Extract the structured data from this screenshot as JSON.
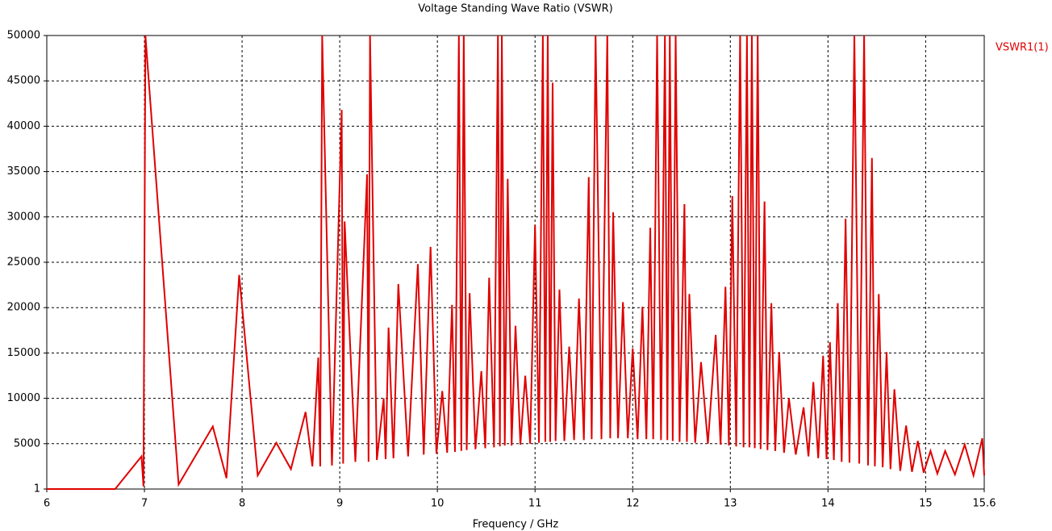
{
  "chart_data": {
    "type": "line",
    "title": "Voltage Standing Wave Ratio (VSWR)",
    "x_label": "Frequency / GHz",
    "xlim": [
      6,
      15.6
    ],
    "xticks": [
      6,
      7,
      8,
      9,
      10,
      11,
      12,
      13,
      14,
      15,
      15.6
    ],
    "ylim": [
      1,
      50000
    ],
    "yticks": [
      1,
      5000,
      10000,
      15000,
      20000,
      25000,
      30000,
      35000,
      40000,
      45000,
      50000
    ],
    "grid": true,
    "legend": "top-right",
    "x": [
      6,
      6.7,
      6.97,
      6.99,
      7.01,
      7.35,
      7.7,
      7.84,
      7.97,
      8.16,
      8.35,
      8.5,
      8.65,
      8.72,
      8.78,
      8.8,
      8.82,
      8.92,
      9.02,
      9.035,
      9.05,
      9.16,
      9.28,
      9.295,
      9.31,
      9.38,
      9.45,
      9.47,
      9.5,
      9.55,
      9.6,
      9.7,
      9.8,
      9.86,
      9.93,
      9.99,
      10.05,
      10.1,
      10.15,
      10.18,
      10.22,
      10.245,
      10.27,
      10.3,
      10.33,
      10.39,
      10.45,
      10.49,
      10.53,
      10.58,
      10.62,
      10.64,
      10.66,
      10.69,
      10.72,
      10.76,
      10.8,
      10.85,
      10.9,
      10.95,
      11.0,
      11.04,
      11.08,
      11.105,
      11.13,
      11.155,
      11.18,
      11.21,
      11.25,
      11.3,
      11.35,
      11.4,
      11.45,
      11.5,
      11.55,
      11.58,
      11.62,
      11.68,
      11.74,
      11.77,
      11.8,
      11.85,
      11.9,
      11.95,
      12.0,
      12.05,
      12.1,
      12.14,
      12.18,
      12.21,
      12.25,
      12.29,
      12.33,
      12.355,
      12.38,
      12.41,
      12.44,
      12.48,
      12.53,
      12.555,
      12.58,
      12.64,
      12.7,
      12.77,
      12.85,
      12.9,
      12.95,
      12.985,
      13.02,
      13.06,
      13.1,
      13.135,
      13.17,
      13.195,
      13.22,
      13.25,
      13.28,
      13.31,
      13.35,
      13.38,
      13.42,
      13.46,
      13.5,
      13.55,
      13.6,
      13.67,
      13.75,
      13.8,
      13.85,
      13.9,
      13.95,
      13.985,
      14.02,
      14.06,
      14.1,
      14.14,
      14.18,
      14.22,
      14.27,
      14.32,
      14.37,
      14.41,
      14.45,
      14.48,
      14.52,
      14.56,
      14.6,
      14.64,
      14.68,
      14.74,
      14.8,
      14.86,
      14.92,
      14.98,
      15.05,
      15.12,
      15.2,
      15.3,
      15.4,
      15.49,
      15.58,
      15.6
    ],
    "series": [
      {
        "name": "VSWR1(1)",
        "color": "#e00000",
        "values": [
          1,
          1,
          3600,
          300,
          50000,
          500,
          6900,
          1200,
          23600,
          1500,
          5100,
          2200,
          8500,
          2500,
          14500,
          2500,
          50000,
          2600,
          41800,
          2800,
          29500,
          3000,
          34700,
          3000,
          50000,
          3200,
          10000,
          3300,
          17800,
          3400,
          22600,
          3600,
          24800,
          3800,
          26700,
          3900,
          10800,
          4000,
          20300,
          4100,
          50000,
          4200,
          50000,
          4300,
          21600,
          4400,
          13000,
          4500,
          23300,
          4600,
          50000,
          4700,
          50000,
          4800,
          34200,
          4800,
          18000,
          4900,
          12500,
          5000,
          29100,
          5100,
          50000,
          5200,
          50000,
          5200,
          44800,
          5300,
          22000,
          5300,
          15700,
          5400,
          21000,
          5400,
          34400,
          5500,
          50000,
          5500,
          50000,
          5600,
          30500,
          5600,
          20600,
          5600,
          15500,
          5500,
          20100,
          5500,
          28800,
          5500,
          50000,
          5400,
          50000,
          5400,
          50000,
          5300,
          50000,
          5200,
          31400,
          5200,
          21500,
          5100,
          14000,
          5000,
          17000,
          4900,
          22300,
          4800,
          32300,
          4700,
          50000,
          4600,
          50000,
          4600,
          50000,
          4500,
          50000,
          4400,
          31700,
          4300,
          20500,
          4200,
          15100,
          4000,
          10000,
          3800,
          9000,
          3600,
          11800,
          3400,
          14700,
          3300,
          16200,
          3200,
          20500,
          3000,
          29800,
          2900,
          50000,
          2800,
          50000,
          2600,
          36500,
          2500,
          21500,
          2400,
          15100,
          2200,
          11000,
          2000,
          7000,
          1900,
          5300,
          1800,
          4200,
          1700,
          4200,
          1600,
          4900,
          1500,
          5600,
          1500
        ]
      }
    ]
  }
}
